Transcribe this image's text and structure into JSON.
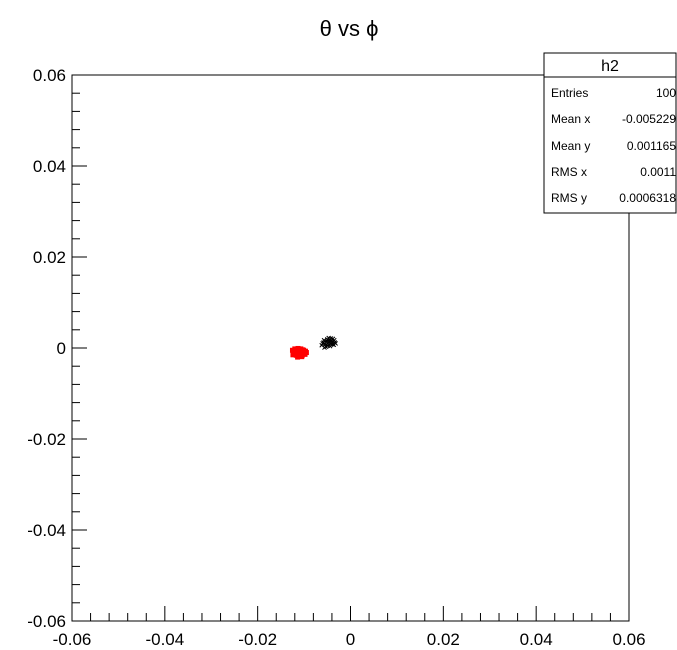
{
  "chart_data": {
    "type": "scatter",
    "title": "θ vs ϕ",
    "xlim": [
      -0.06,
      0.06
    ],
    "ylim": [
      -0.06,
      0.06
    ],
    "xticks": [
      "-0.06",
      "-0.04",
      "-0.02",
      "0",
      "0.02",
      "0.04",
      "0.06"
    ],
    "yticks": [
      "0.06",
      "0.04",
      "0.02",
      "0",
      "-0.02",
      "-0.04",
      "-0.06"
    ],
    "grid": false,
    "series": [
      {
        "color": "#000000",
        "marker": "small-cross",
        "points": [
          [
            -0.0062,
            0.0006
          ],
          [
            -0.0058,
            0.0012
          ],
          [
            -0.0055,
            0.0008
          ],
          [
            -0.0051,
            0.0015
          ],
          [
            -0.0048,
            0.0011
          ],
          [
            -0.0045,
            0.0018
          ],
          [
            -0.0043,
            0.0009
          ],
          [
            -0.004,
            0.0013
          ],
          [
            -0.0038,
            0.002
          ],
          [
            -0.0036,
            0.0007
          ],
          [
            -0.0053,
            0.0003
          ],
          [
            -0.0049,
            0.0005
          ],
          [
            -0.0046,
            0.0014
          ],
          [
            -0.0041,
            0.0016
          ],
          [
            -0.0057,
            0.0017
          ],
          [
            -0.0034,
            0.0012
          ],
          [
            -0.006,
            0.001
          ],
          [
            -0.0044,
            0.0004
          ],
          [
            -0.0039,
            0.0008
          ],
          [
            -0.005,
            0.0019
          ],
          [
            -0.0047,
            0.0022
          ],
          [
            -0.0035,
            0.0017
          ],
          [
            -0.0056,
            0.0001
          ],
          [
            -0.0042,
            0.0021
          ],
          [
            -0.0032,
            0.001
          ]
        ]
      },
      {
        "color": "#ff0000",
        "marker": "filled-square",
        "points": [
          [
            -0.0125,
            -0.0005
          ],
          [
            -0.0121,
            -0.0008
          ],
          [
            -0.0118,
            -0.0003
          ],
          [
            -0.0115,
            -0.0011
          ],
          [
            -0.0112,
            -0.0006
          ],
          [
            -0.0109,
            -0.0014
          ],
          [
            -0.0106,
            -0.0009
          ],
          [
            -0.0103,
            -0.0004
          ],
          [
            -0.01,
            -0.0012
          ],
          [
            -0.0097,
            -0.0007
          ],
          [
            -0.0095,
            -0.001
          ],
          [
            -0.0122,
            -0.0013
          ],
          [
            -0.0117,
            -0.0016
          ],
          [
            -0.0111,
            -0.0018
          ],
          [
            -0.0107,
            -0.0002
          ],
          [
            -0.0104,
            -0.0016
          ],
          [
            -0.0113,
            -0.0001
          ],
          [
            -0.0119,
            -0.001
          ],
          [
            -0.0108,
            -0.0011
          ],
          [
            -0.0101,
            -0.0005
          ],
          [
            -0.0124,
            -0.0015
          ],
          [
            -0.0116,
            -0.0007
          ],
          [
            -0.011,
            -0.0009
          ],
          [
            -0.0098,
            -0.0014
          ],
          [
            -0.0114,
            -0.002
          ],
          [
            -0.0105,
            -0.0019
          ],
          [
            -0.012,
            -0.0002
          ],
          [
            -0.0102,
            -0.0009
          ]
        ]
      }
    ],
    "stats_box": {
      "name": "h2",
      "rows": [
        {
          "label": "Entries",
          "value": "100"
        },
        {
          "label": "Mean x",
          "value": "-0.005229"
        },
        {
          "label": "Mean y",
          "value": "0.001165"
        },
        {
          "label": "RMS x",
          "value": "0.0011"
        },
        {
          "label": "RMS y",
          "value": "0.0006318"
        }
      ]
    }
  }
}
